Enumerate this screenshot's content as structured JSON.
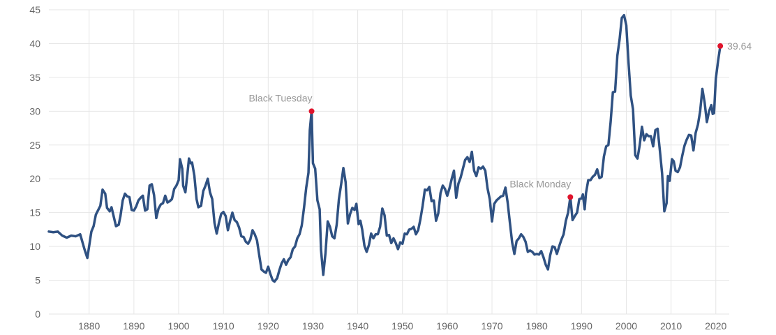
{
  "chart_data": {
    "type": "line",
    "title": "",
    "xlabel": "",
    "ylabel": "",
    "xlim": [
      1871,
      2023
    ],
    "ylim": [
      0,
      45
    ],
    "x_ticks": [
      1880,
      1890,
      1900,
      1910,
      1920,
      1930,
      1940,
      1950,
      1960,
      1970,
      1980,
      1990,
      2000,
      2010,
      2020
    ],
    "y_ticks": [
      0,
      5,
      10,
      15,
      20,
      25,
      30,
      35,
      40,
      45
    ],
    "grid": true,
    "legend": "none",
    "line_color": "#2f5182",
    "marker_color": "#e0142c",
    "series": [
      {
        "values": [
          [
            1871,
            12.2
          ],
          [
            1872,
            12.1
          ],
          [
            1873,
            12.2
          ],
          [
            1874,
            11.6
          ],
          [
            1875,
            11.3
          ],
          [
            1876,
            11.6
          ],
          [
            1877,
            11.5
          ],
          [
            1878,
            11.8
          ],
          [
            1879,
            9.5
          ],
          [
            1879.6,
            8.3
          ],
          [
            1880.5,
            12.2
          ],
          [
            1881,
            13.0
          ],
          [
            1881.5,
            14.7
          ],
          [
            1882.5,
            16.0
          ],
          [
            1883,
            18.4
          ],
          [
            1883.6,
            17.8
          ],
          [
            1884,
            15.7
          ],
          [
            1884.6,
            15.2
          ],
          [
            1885,
            15.8
          ],
          [
            1886,
            13.0
          ],
          [
            1886.6,
            13.2
          ],
          [
            1887,
            14.5
          ],
          [
            1887.5,
            16.8
          ],
          [
            1888,
            17.8
          ],
          [
            1888.5,
            17.4
          ],
          [
            1889,
            17.3
          ],
          [
            1889.5,
            15.4
          ],
          [
            1890,
            15.3
          ],
          [
            1890.5,
            15.9
          ],
          [
            1891,
            16.8
          ],
          [
            1891.5,
            17.2
          ],
          [
            1892,
            17.5
          ],
          [
            1892.5,
            15.3
          ],
          [
            1893,
            15.5
          ],
          [
            1893.5,
            19.0
          ],
          [
            1894,
            19.2
          ],
          [
            1894.5,
            17.6
          ],
          [
            1895,
            14.2
          ],
          [
            1895.5,
            15.6
          ],
          [
            1896,
            16.2
          ],
          [
            1896.5,
            16.4
          ],
          [
            1897,
            17.5
          ],
          [
            1897.5,
            16.5
          ],
          [
            1898,
            16.7
          ],
          [
            1898.5,
            17.0
          ],
          [
            1899,
            18.5
          ],
          [
            1899.5,
            19.0
          ],
          [
            1900,
            19.8
          ],
          [
            1900.3,
            22.9
          ],
          [
            1900.8,
            21.5
          ],
          [
            1901,
            19.0
          ],
          [
            1901.5,
            18.0
          ],
          [
            1902,
            21.0
          ],
          [
            1902.3,
            23.0
          ],
          [
            1902.7,
            22.3
          ],
          [
            1903,
            22.4
          ],
          [
            1903.5,
            20.5
          ],
          [
            1904,
            17.0
          ],
          [
            1904.4,
            15.8
          ],
          [
            1905,
            16.0
          ],
          [
            1905.5,
            18.2
          ],
          [
            1906,
            19.0
          ],
          [
            1906.5,
            20.0
          ],
          [
            1907,
            18.0
          ],
          [
            1907.5,
            17.0
          ],
          [
            1908,
            13.5
          ],
          [
            1908.5,
            11.9
          ],
          [
            1909,
            13.5
          ],
          [
            1909.5,
            14.8
          ],
          [
            1910,
            15.1
          ],
          [
            1910.5,
            14.5
          ],
          [
            1911,
            12.4
          ],
          [
            1911.5,
            13.8
          ],
          [
            1912,
            15.0
          ],
          [
            1912.5,
            13.9
          ],
          [
            1913,
            13.6
          ],
          [
            1913.5,
            12.8
          ],
          [
            1914,
            11.5
          ],
          [
            1914.5,
            11.4
          ],
          [
            1915,
            10.7
          ],
          [
            1915.5,
            10.4
          ],
          [
            1916,
            11.0
          ],
          [
            1916.5,
            12.4
          ],
          [
            1917,
            11.8
          ],
          [
            1917.5,
            10.9
          ],
          [
            1918,
            8.7
          ],
          [
            1918.5,
            6.6
          ],
          [
            1919,
            6.3
          ],
          [
            1919.5,
            6.1
          ],
          [
            1920,
            7.0
          ],
          [
            1920.5,
            5.9
          ],
          [
            1921,
            5.0
          ],
          [
            1921.4,
            4.8
          ],
          [
            1922,
            5.3
          ],
          [
            1922.5,
            6.5
          ],
          [
            1923,
            7.5
          ],
          [
            1923.5,
            8.1
          ],
          [
            1924,
            7.3
          ],
          [
            1924.5,
            8.0
          ],
          [
            1925,
            8.4
          ],
          [
            1925.5,
            9.6
          ],
          [
            1926,
            10.0
          ],
          [
            1926.5,
            11.2
          ],
          [
            1927,
            11.8
          ],
          [
            1927.5,
            13.1
          ],
          [
            1928,
            15.7
          ],
          [
            1928.5,
            18.7
          ],
          [
            1929,
            20.9
          ],
          [
            1929.3,
            27.2
          ],
          [
            1929.7,
            30.0
          ],
          [
            1930,
            22.3
          ],
          [
            1930.5,
            21.5
          ],
          [
            1931,
            16.8
          ],
          [
            1931.5,
            15.5
          ],
          [
            1931.8,
            9.5
          ],
          [
            1932.3,
            5.8
          ],
          [
            1932.8,
            9.0
          ],
          [
            1933.3,
            13.7
          ],
          [
            1933.8,
            12.9
          ],
          [
            1934.3,
            11.5
          ],
          [
            1934.8,
            11.2
          ],
          [
            1935.3,
            13.2
          ],
          [
            1935.8,
            17.0
          ],
          [
            1936.3,
            19.2
          ],
          [
            1936.8,
            21.6
          ],
          [
            1937.3,
            19.5
          ],
          [
            1937.8,
            13.4
          ],
          [
            1938.3,
            14.8
          ],
          [
            1938.8,
            15.7
          ],
          [
            1939.3,
            15.4
          ],
          [
            1939.7,
            16.3
          ],
          [
            1940.2,
            13.3
          ],
          [
            1940.6,
            13.8
          ],
          [
            1941,
            12.5
          ],
          [
            1941.5,
            10.1
          ],
          [
            1942,
            9.2
          ],
          [
            1942.5,
            10.2
          ],
          [
            1943,
            11.9
          ],
          [
            1943.5,
            11.2
          ],
          [
            1944,
            11.8
          ],
          [
            1944.5,
            11.8
          ],
          [
            1945,
            12.9
          ],
          [
            1945.5,
            15.6
          ],
          [
            1946,
            14.6
          ],
          [
            1946.5,
            11.6
          ],
          [
            1947,
            11.7
          ],
          [
            1947.5,
            10.5
          ],
          [
            1948,
            11.2
          ],
          [
            1948.5,
            10.5
          ],
          [
            1949,
            9.6
          ],
          [
            1949.5,
            10.6
          ],
          [
            1950,
            10.4
          ],
          [
            1950.5,
            11.9
          ],
          [
            1951,
            11.8
          ],
          [
            1951.5,
            12.5
          ],
          [
            1952,
            12.6
          ],
          [
            1952.5,
            12.9
          ],
          [
            1953,
            11.8
          ],
          [
            1953.5,
            12.4
          ],
          [
            1954,
            14.0
          ],
          [
            1954.5,
            16.0
          ],
          [
            1955,
            18.4
          ],
          [
            1955.5,
            18.3
          ],
          [
            1956,
            18.8
          ],
          [
            1956.5,
            16.7
          ],
          [
            1957,
            16.8
          ],
          [
            1957.5,
            13.8
          ],
          [
            1958,
            14.9
          ],
          [
            1958.5,
            17.9
          ],
          [
            1959,
            19.0
          ],
          [
            1959.5,
            18.5
          ],
          [
            1960,
            17.5
          ],
          [
            1960.5,
            18.6
          ],
          [
            1961,
            20.0
          ],
          [
            1961.5,
            21.2
          ],
          [
            1962,
            17.2
          ],
          [
            1962.5,
            19.3
          ],
          [
            1963,
            20.2
          ],
          [
            1963.5,
            21.5
          ],
          [
            1964,
            22.8
          ],
          [
            1964.5,
            23.2
          ],
          [
            1965,
            22.5
          ],
          [
            1965.5,
            24.0
          ],
          [
            1966,
            21.2
          ],
          [
            1966.5,
            20.4
          ],
          [
            1967,
            21.7
          ],
          [
            1967.5,
            21.5
          ],
          [
            1968,
            21.8
          ],
          [
            1968.5,
            21.2
          ],
          [
            1969,
            18.6
          ],
          [
            1969.5,
            17.0
          ],
          [
            1970,
            13.7
          ],
          [
            1970.5,
            16.3
          ],
          [
            1971,
            16.8
          ],
          [
            1971.5,
            17.1
          ],
          [
            1972,
            17.4
          ],
          [
            1972.5,
            17.5
          ],
          [
            1973,
            18.7
          ],
          [
            1973.5,
            16.5
          ],
          [
            1974,
            13.5
          ],
          [
            1974.5,
            10.6
          ],
          [
            1975,
            8.9
          ],
          [
            1975.5,
            10.8
          ],
          [
            1976,
            11.2
          ],
          [
            1976.5,
            11.8
          ],
          [
            1977,
            11.4
          ],
          [
            1977.5,
            10.7
          ],
          [
            1978,
            9.2
          ],
          [
            1978.5,
            9.4
          ],
          [
            1979,
            9.2
          ],
          [
            1979.5,
            8.8
          ],
          [
            1980,
            8.9
          ],
          [
            1980.5,
            8.8
          ],
          [
            1981,
            9.3
          ],
          [
            1981.5,
            8.4
          ],
          [
            1982,
            7.3
          ],
          [
            1982.5,
            6.6
          ],
          [
            1983,
            8.7
          ],
          [
            1983.5,
            10.0
          ],
          [
            1984,
            9.9
          ],
          [
            1984.5,
            8.9
          ],
          [
            1985,
            10.0
          ],
          [
            1985.5,
            11.0
          ],
          [
            1986,
            11.8
          ],
          [
            1986.5,
            13.8
          ],
          [
            1987,
            15.0
          ],
          [
            1987.5,
            17.3
          ],
          [
            1988,
            13.9
          ],
          [
            1988.5,
            14.5
          ],
          [
            1989,
            15.0
          ],
          [
            1989.5,
            17.0
          ],
          [
            1990,
            17.1
          ],
          [
            1990.3,
            17.7
          ],
          [
            1990.7,
            15.5
          ],
          [
            1991,
            17.9
          ],
          [
            1991.5,
            19.8
          ],
          [
            1992,
            19.8
          ],
          [
            1992.5,
            20.3
          ],
          [
            1993,
            20.6
          ],
          [
            1993.5,
            21.4
          ],
          [
            1994,
            20.1
          ],
          [
            1994.5,
            20.3
          ],
          [
            1995,
            23.3
          ],
          [
            1995.5,
            24.8
          ],
          [
            1996,
            25.0
          ],
          [
            1996.5,
            28.4
          ],
          [
            1997,
            32.8
          ],
          [
            1997.5,
            32.9
          ],
          [
            1998,
            38.2
          ],
          [
            1998.5,
            40.6
          ],
          [
            1999,
            43.8
          ],
          [
            1999.5,
            44.2
          ],
          [
            2000,
            42.7
          ],
          [
            2000.5,
            37.2
          ],
          [
            2001,
            32.3
          ],
          [
            2001.5,
            30.3
          ],
          [
            2002,
            23.5
          ],
          [
            2002.5,
            23.0
          ],
          [
            2003,
            25.0
          ],
          [
            2003.5,
            27.7
          ],
          [
            2004,
            25.7
          ],
          [
            2004.5,
            26.6
          ],
          [
            2005,
            26.3
          ],
          [
            2005.5,
            26.3
          ],
          [
            2006,
            24.8
          ],
          [
            2006.5,
            27.2
          ],
          [
            2007,
            27.4
          ],
          [
            2007.5,
            24.2
          ],
          [
            2008,
            20.8
          ],
          [
            2008.5,
            15.2
          ],
          [
            2009,
            16.4
          ],
          [
            2009.3,
            20.4
          ],
          [
            2009.7,
            19.7
          ],
          [
            2010.2,
            22.9
          ],
          [
            2010.6,
            22.6
          ],
          [
            2011,
            21.2
          ],
          [
            2011.5,
            21.0
          ],
          [
            2012,
            21.7
          ],
          [
            2012.5,
            23.4
          ],
          [
            2013,
            24.9
          ],
          [
            2013.5,
            25.8
          ],
          [
            2014,
            26.5
          ],
          [
            2014.5,
            26.4
          ],
          [
            2015,
            24.2
          ],
          [
            2015.5,
            26.8
          ],
          [
            2016,
            28.0
          ],
          [
            2016.5,
            30.0
          ],
          [
            2017,
            33.3
          ],
          [
            2017.5,
            31.3
          ],
          [
            2018,
            28.4
          ],
          [
            2018.5,
            30.0
          ],
          [
            2019,
            30.9
          ],
          [
            2019.3,
            29.6
          ],
          [
            2019.6,
            29.7
          ],
          [
            2020,
            34.8
          ],
          [
            2020.5,
            37.4
          ],
          [
            2021,
            39.64
          ]
        ]
      }
    ],
    "annotations": [
      {
        "label": "Black Tuesday",
        "x": 1929.7,
        "y": 30.0,
        "anchor": "end"
      },
      {
        "label": "Black Monday",
        "x": 1987.5,
        "y": 17.3,
        "anchor": "end"
      }
    ],
    "last_value": {
      "label": "39.64",
      "x": 2021,
      "y": 39.64
    }
  }
}
